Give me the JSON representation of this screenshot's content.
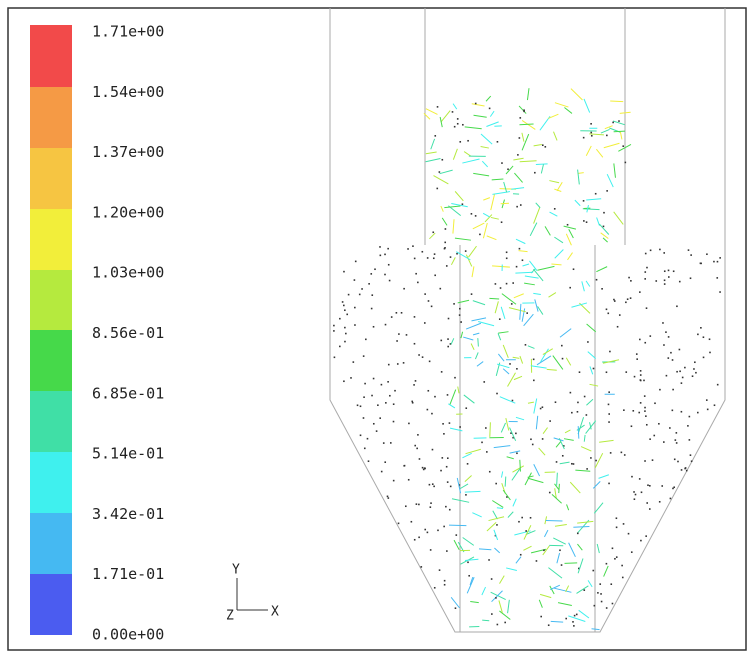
{
  "legend": {
    "labels": [
      "1.71e+00",
      "1.54e+00",
      "1.37e+00",
      "1.20e+00",
      "1.03e+00",
      "8.56e-01",
      "6.85e-01",
      "5.14e-01",
      "3.42e-01",
      "1.71e-01",
      "0.00e+00"
    ]
  },
  "axes": {
    "y": "Y",
    "z": "Z",
    "x": "X"
  }
}
